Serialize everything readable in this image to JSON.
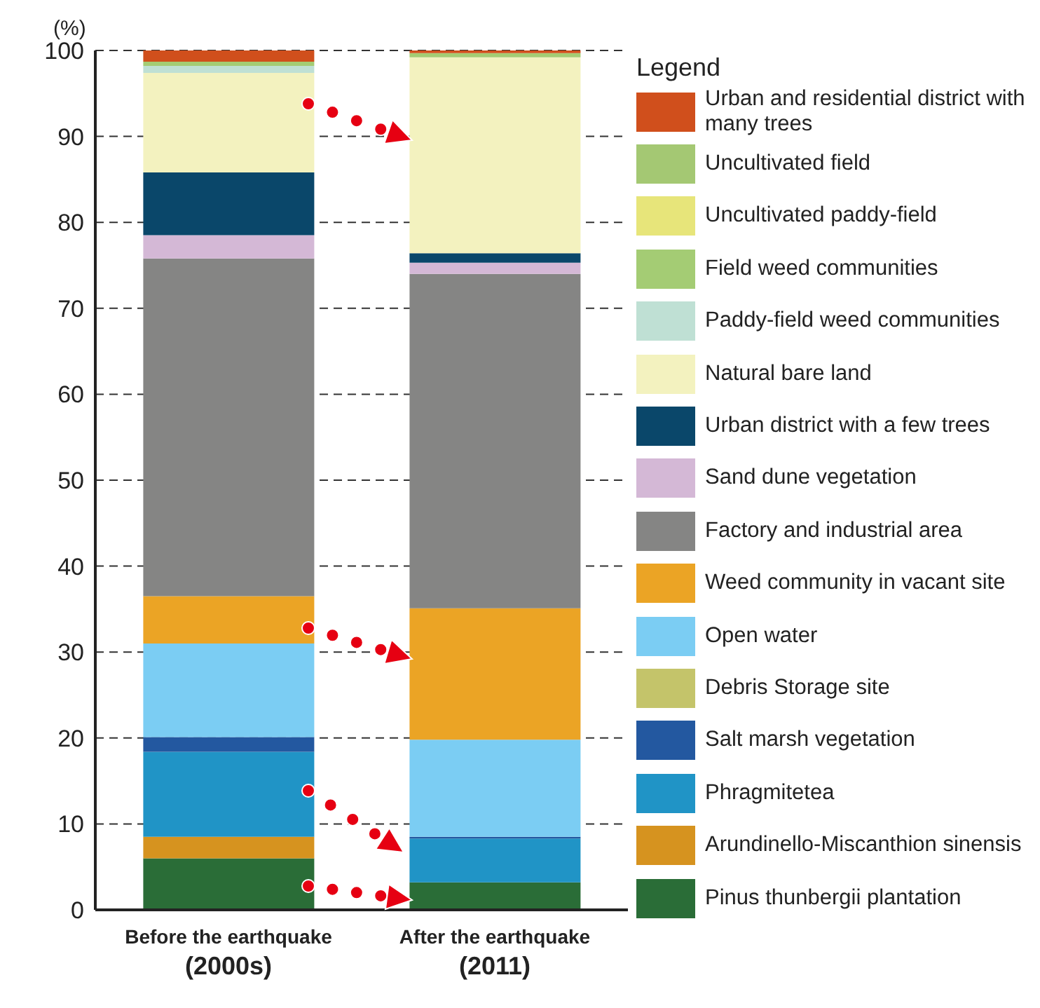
{
  "chart_data": {
    "type": "bar",
    "stacked": true,
    "ylabel": "(%)",
    "legend_title": "Legend",
    "legend": "right",
    "grid": "y",
    "categories": [
      "Before the earthquake\n(2000s)",
      "After the earthquake\n(2011)"
    ],
    "ylim": [
      0,
      100
    ],
    "yticks": [
      0,
      10,
      20,
      30,
      40,
      50,
      60,
      70,
      80,
      90,
      100
    ],
    "series": [
      {
        "name": "Pinus thunbergii plantation",
        "color": "#2a6d37",
        "values": [
          6.0,
          3.2
        ]
      },
      {
        "name": "Arundinello-Miscanthion sinensis",
        "color": "#d6931f",
        "values": [
          2.5,
          0
        ]
      },
      {
        "name": "Phragmitetea",
        "color": "#2094c6",
        "values": [
          9.9,
          5.1
        ]
      },
      {
        "name": "Salt marsh vegetation",
        "color": "#2358a0",
        "values": [
          1.7,
          0.2
        ]
      },
      {
        "name": "Debris Storage site",
        "color": "#c4c46a",
        "values": [
          0,
          0
        ]
      },
      {
        "name": "Open water",
        "color": "#7bcdf3",
        "values": [
          10.9,
          11.3
        ]
      },
      {
        "name": "Weed community in vacant site",
        "color": "#eba425",
        "values": [
          5.5,
          15.3
        ]
      },
      {
        "name": "Factory and industrial area",
        "color": "#858584",
        "values": [
          39.3,
          38.9
        ]
      },
      {
        "name": "Sand dune vegetation",
        "color": "#d4b8d6",
        "values": [
          2.7,
          1.3
        ]
      },
      {
        "name": "Urban district with a few trees",
        "color": "#0a476a",
        "values": [
          7.3,
          1.1
        ]
      },
      {
        "name": "Natural bare land",
        "color": "#f3f2bf",
        "values": [
          11.6,
          22.8
        ]
      },
      {
        "name": "Paddy-field weed communities",
        "color": "#bfe0d4",
        "values": [
          0.8,
          0
        ]
      },
      {
        "name": "Field weed communities",
        "color": "#a4cc74",
        "values": [
          0.5,
          0.5
        ]
      },
      {
        "name": "Uncultivated paddy-field",
        "color": "#e7e57a",
        "values": [
          0,
          0
        ]
      },
      {
        "name": "Uncultivated field",
        "color": "#a4c873",
        "values": [
          0,
          0
        ]
      },
      {
        "name": "Urban and residential district with many trees",
        "color": "#d04f1c",
        "values": [
          1.3,
          0.3
        ]
      }
    ]
  }
}
